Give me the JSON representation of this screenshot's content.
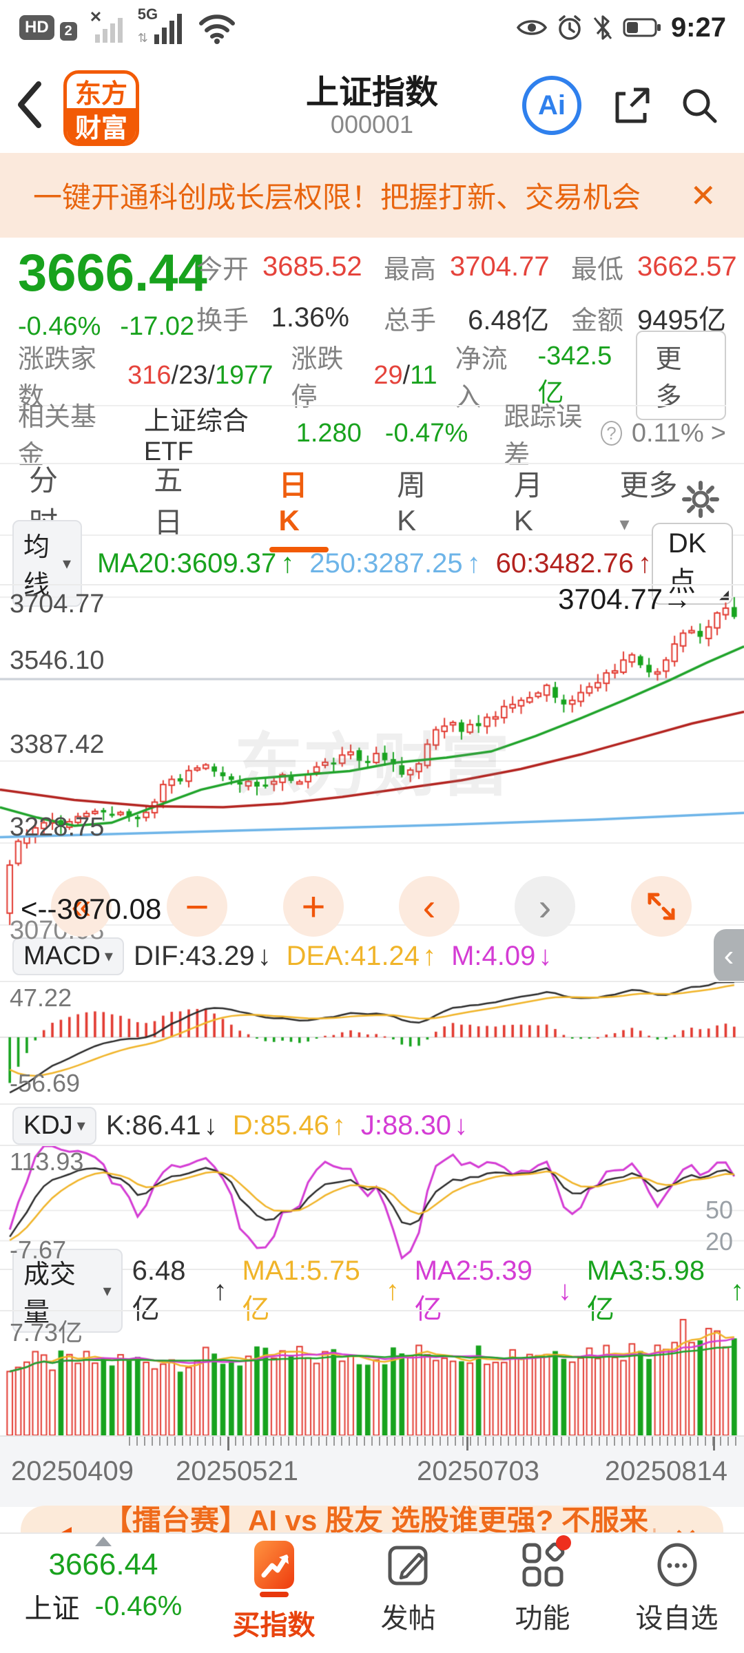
{
  "status_bar": {
    "hd": "HD",
    "sim2": "2",
    "net": "5G",
    "no_signal_x": "✕",
    "time": "9:27"
  },
  "header": {
    "logo_line1": "东方",
    "logo_line2": "财富",
    "title": "上证指数",
    "code": "000001",
    "ai_label": "Ai"
  },
  "promo_banner": {
    "text": "一键开通科创成长层权限！把握打新、交易机会",
    "close": "✕"
  },
  "quote": {
    "price": "3666.44",
    "change_pct": "-0.46%",
    "change": "-17.02",
    "stats": [
      {
        "label": "今开",
        "value": "3685.52"
      },
      {
        "label": "最高",
        "value": "3704.77"
      },
      {
        "label": "最低",
        "value": "3662.57"
      },
      {
        "label": "换手",
        "value": "1.36%"
      },
      {
        "label": "总手",
        "value": "6.48亿"
      },
      {
        "label": "金额",
        "value": "9495亿"
      }
    ],
    "breadth": {
      "label": "涨跌家数",
      "up": "316",
      "sep1": "/",
      "flat": "23",
      "sep2": "/",
      "down": "1977",
      "limit_label": "涨跌停",
      "limit_up": "29",
      "limit_sep": "/",
      "limit_down": "11",
      "inflow_label": "净流入",
      "inflow": "-342.5亿",
      "more": "更多"
    },
    "fund": {
      "label": "相关基金",
      "name": "上证综合ETF",
      "price": "1.280",
      "pct": "-0.47%",
      "te_label": "跟踪误差",
      "q": "?",
      "te": "0.11%",
      "arrow": ">"
    }
  },
  "tabs": {
    "t0": "分时",
    "t1": "五日",
    "t2": "日K",
    "t3": "周K",
    "t4": "月K",
    "more": "更多",
    "more_caret": "▾"
  },
  "kline": {
    "ma_button": "均线",
    "ma_caret": "▾",
    "leg1": "MA20:3609.37",
    "leg1_arrow": "↑",
    "leg2": "250:3287.25",
    "leg2_arrow": "↑",
    "leg3": "60:3482.76",
    "leg3_arrow": "↑",
    "dk_button": "DK点",
    "y_labels": [
      "3704.77",
      "3546.10",
      "3387.42",
      "3228.75",
      "3070.08"
    ],
    "max_label": "3704.77→",
    "min_label": "<--3070.08",
    "watermark": "东方财富"
  },
  "controls": {
    "b_fast_left": "«",
    "b_minus": "−",
    "b_plus": "+",
    "b_left": "‹",
    "b_right": "›"
  },
  "macd": {
    "button": "MACD",
    "caret": "▾",
    "dif": "DIF:43.29",
    "dif_arrow": "↓",
    "dea": "DEA:41.24",
    "dea_arrow": "↑",
    "m": "M:4.09",
    "m_arrow": "↓",
    "y_top": "47.22",
    "y_bottom": "-56.69",
    "collapse": "‹"
  },
  "kdj": {
    "button": "KDJ",
    "caret": "▾",
    "k": "K:86.41",
    "k_arrow": "↓",
    "d": "D:85.46",
    "d_arrow": "↑",
    "j": "J:88.30",
    "j_arrow": "↓",
    "y_top": "113.93",
    "y_bottom": "-7.67",
    "right_labels": [
      "50",
      "20"
    ]
  },
  "volume": {
    "button": "成交量",
    "caret": "▾",
    "current": "6.48亿",
    "current_arrow": "↑",
    "ma1": "MA1:5.75亿",
    "ma1_arrow": "↑",
    "ma2": "MA2:5.39亿",
    "ma2_arrow": "↓",
    "ma3": "MA3:5.98亿",
    "ma3_arrow": "↑",
    "y_top": "7.73亿"
  },
  "x_axis": {
    "labels": [
      "20250409",
      "20250521",
      "20250703",
      "20250814"
    ]
  },
  "bottom_banner": {
    "text": "【擂台赛】AI vs 股友 选股谁更强? 不服来战!",
    "divider": "|",
    "close": "✕"
  },
  "bottom_nav": {
    "index_value": "3666.44",
    "index_name": "上证",
    "index_pct": "-0.46%",
    "buy_label": "买指数",
    "post_label": "发帖",
    "func_label": "功能",
    "watch_label": "设自选"
  },
  "colors": {
    "up_red": "#e23b32",
    "down_green": "#17a31e",
    "price_green": "#18a21d",
    "accent_orange": "#ef5d0d",
    "banner_bg": "#fbe9dc",
    "gold": "#f0b429",
    "magenta": "#d43cd4",
    "ma250_blue": "#6db4e8",
    "ma60_darkred": "#b3231f",
    "ma20_green": "#1fa32a"
  },
  "chart_data": {
    "type": "candlestick",
    "title": "上证指数 日K",
    "x_labels": [
      "20250409",
      "20250521",
      "20250703",
      "20250814"
    ],
    "price_axis": [
      3704.77,
      3546.1,
      3387.42,
      3228.75,
      3070.08
    ],
    "closes": [
      3186,
      3232,
      3241,
      3258,
      3268,
      3272,
      3262,
      3270,
      3280,
      3286,
      3290,
      3288,
      3282,
      3288,
      3280,
      3275,
      3288,
      3308,
      3342,
      3352,
      3348,
      3369,
      3374,
      3380,
      3367,
      3358,
      3351,
      3342,
      3348,
      3338,
      3341,
      3348,
      3361,
      3349,
      3347,
      3362,
      3376,
      3385,
      3381,
      3399,
      3405,
      3388,
      3387,
      3402,
      3389,
      3381,
      3361,
      3370,
      3382,
      3420,
      3448,
      3455,
      3462,
      3444,
      3458,
      3455,
      3472,
      3473,
      3493,
      3497,
      3505,
      3510,
      3519,
      3534,
      3510,
      3497,
      3505,
      3520,
      3531,
      3539,
      3558,
      3562,
      3583,
      3593,
      3573,
      3559,
      3560,
      3583,
      3614,
      3635,
      3640,
      3628,
      3647,
      3674,
      3683.46,
      3666.44
    ],
    "prehistory": [
      3342,
      3335,
      3320,
      3296,
      3260,
      3211,
      3160,
      3096,
      3145
    ],
    "first_candle": {
      "open": 3093,
      "high": 3196,
      "low": 3070.08,
      "close": 3186
    },
    "last_candle": {
      "open": 3685.52,
      "high": 3704.77,
      "low": 3662.57,
      "close": 3666.44
    },
    "ma_lines": {
      "ma20": {
        "color": "#1fa32a",
        "points": [
          [
            0,
            3298
          ],
          [
            0.05,
            3278
          ],
          [
            0.1,
            3262
          ],
          [
            0.15,
            3268
          ],
          [
            0.2,
            3295
          ],
          [
            0.27,
            3332
          ],
          [
            0.33,
            3352
          ],
          [
            0.4,
            3360
          ],
          [
            0.47,
            3368
          ],
          [
            0.53,
            3384
          ],
          [
            0.6,
            3394
          ],
          [
            0.66,
            3406
          ],
          [
            0.72,
            3436
          ],
          [
            0.78,
            3470
          ],
          [
            0.84,
            3506
          ],
          [
            0.9,
            3544
          ],
          [
            0.95,
            3578
          ],
          [
            1,
            3609.37
          ]
        ]
      },
      "ma60": {
        "color": "#b3231f",
        "points": [
          [
            0,
            3332
          ],
          [
            0.1,
            3312
          ],
          [
            0.2,
            3300
          ],
          [
            0.3,
            3298
          ],
          [
            0.38,
            3305
          ],
          [
            0.46,
            3318
          ],
          [
            0.54,
            3334
          ],
          [
            0.62,
            3350
          ],
          [
            0.7,
            3372
          ],
          [
            0.78,
            3400
          ],
          [
            0.86,
            3432
          ],
          [
            0.93,
            3460
          ],
          [
            1,
            3482.76
          ]
        ]
      },
      "ma250": {
        "color": "#6db4e8",
        "points": [
          [
            0,
            3240
          ],
          [
            0.3,
            3252
          ],
          [
            0.6,
            3264
          ],
          [
            0.8,
            3274
          ],
          [
            1,
            3287.25
          ]
        ]
      }
    },
    "macd": {
      "ylim": [
        -56.69,
        47.22
      ],
      "dif_last": 43.29,
      "dea_last": 41.24,
      "m_last": 4.09
    },
    "kdj": {
      "ylim": [
        -7.67,
        113.93
      ],
      "grid": [
        50,
        20
      ],
      "k_last": 86.41,
      "d_last": 85.46,
      "j_last": 88.3
    },
    "volume": {
      "ymax": 7.73,
      "unit": "亿",
      "last": 6.48,
      "ma1_last": 5.75,
      "ma2_last": 5.39,
      "ma3_last": 5.98
    }
  }
}
